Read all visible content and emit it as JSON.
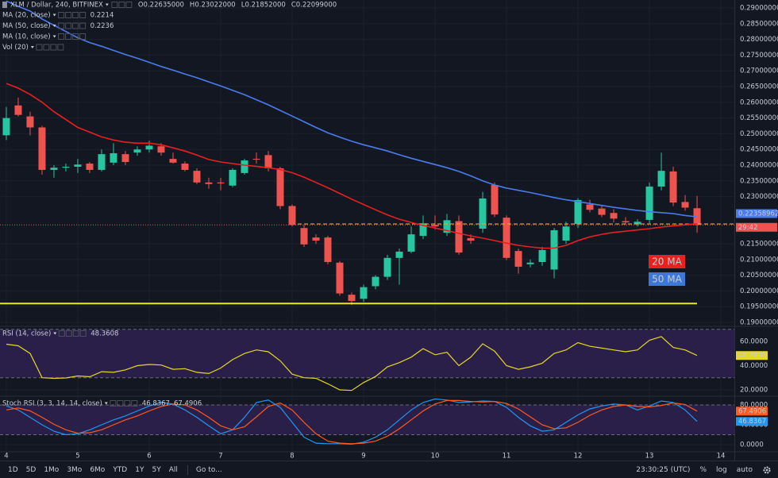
{
  "chart_data": [
    {
      "type": "candlestick",
      "title": "XLM / Dollar, 240, BITFINEX",
      "ohlc": [
        {
          "key": "O",
          "text": "0.22635000"
        },
        {
          "key": "H",
          "text": "0.23022000"
        },
        {
          "key": "L",
          "text": "0.21852000"
        },
        {
          "key": "C",
          "text": "0.22099000"
        }
      ],
      "open": [
        0.2495,
        0.259,
        0.2555,
        0.252,
        0.2385,
        0.2392,
        0.2395,
        0.2405,
        0.2385,
        0.2408,
        0.2435,
        0.244,
        0.245,
        0.246,
        0.242,
        0.2405,
        0.2382,
        0.2345,
        0.2345,
        0.2335,
        0.2375,
        0.242,
        0.2432,
        0.239,
        0.227,
        0.22,
        0.217,
        0.217,
        0.209,
        0.1988,
        0.1975,
        0.2015,
        0.2045,
        0.2105,
        0.2125,
        0.2175,
        0.221,
        0.2185,
        0.2222,
        0.2168,
        0.2198,
        0.2337,
        0.2233,
        0.2127,
        0.2085,
        0.2092,
        0.2068,
        0.216,
        0.2213,
        0.2275,
        0.2262,
        0.2248,
        0.2222,
        0.2212,
        0.2226,
        0.2332,
        0.238,
        0.2283,
        0.2263
      ],
      "high": [
        0.2585,
        0.2615,
        0.257,
        0.2525,
        0.24,
        0.2405,
        0.242,
        0.241,
        0.245,
        0.247,
        0.2445,
        0.246,
        0.2478,
        0.247,
        0.244,
        0.2412,
        0.239,
        0.236,
        0.236,
        0.239,
        0.242,
        0.244,
        0.2445,
        0.2395,
        0.2275,
        0.221,
        0.218,
        0.2175,
        0.2095,
        0.1995,
        0.202,
        0.205,
        0.2115,
        0.2135,
        0.2205,
        0.224,
        0.224,
        0.2245,
        0.224,
        0.218,
        0.2315,
        0.2345,
        0.224,
        0.2135,
        0.21,
        0.214,
        0.22,
        0.222,
        0.2295,
        0.229,
        0.227,
        0.226,
        0.2235,
        0.2228,
        0.2345,
        0.244,
        0.2395,
        0.2305,
        0.2302
      ],
      "low": [
        0.248,
        0.2555,
        0.2495,
        0.237,
        0.236,
        0.238,
        0.2375,
        0.2375,
        0.238,
        0.24,
        0.24,
        0.243,
        0.244,
        0.243,
        0.2405,
        0.238,
        0.234,
        0.2325,
        0.232,
        0.233,
        0.237,
        0.2405,
        0.238,
        0.226,
        0.2205,
        0.214,
        0.215,
        0.2085,
        0.1985,
        0.1955,
        0.1965,
        0.2005,
        0.2035,
        0.202,
        0.212,
        0.2165,
        0.2195,
        0.2175,
        0.2115,
        0.215,
        0.2185,
        0.2235,
        0.2098,
        0.2055,
        0.2075,
        0.208,
        0.204,
        0.215,
        0.22,
        0.225,
        0.2235,
        0.2218,
        0.221,
        0.2205,
        0.2215,
        0.232,
        0.227,
        0.2255,
        0.2185
      ],
      "close": [
        0.255,
        0.256,
        0.252,
        0.2385,
        0.2392,
        0.2395,
        0.2402,
        0.2385,
        0.2435,
        0.2438,
        0.241,
        0.245,
        0.2462,
        0.244,
        0.2408,
        0.2385,
        0.2345,
        0.234,
        0.2342,
        0.2385,
        0.2415,
        0.2418,
        0.239,
        0.227,
        0.221,
        0.2148,
        0.216,
        0.2092,
        0.1992,
        0.1968,
        0.2012,
        0.2045,
        0.2105,
        0.2125,
        0.218,
        0.2215,
        0.2205,
        0.2225,
        0.2122,
        0.216,
        0.2294,
        0.2243,
        0.2105,
        0.2077,
        0.209,
        0.213,
        0.2193,
        0.2205,
        0.2289,
        0.2258,
        0.2242,
        0.223,
        0.2218,
        0.222,
        0.2332,
        0.2382,
        0.2281,
        0.2265,
        0.22099
      ],
      "up_color": "#26c6a0",
      "down_color": "#ef5350",
      "series": [
        {
          "name": "MA (20, close)",
          "color": "#e8201f",
          "last": "0.2214",
          "values": [
            0.266,
            0.2645,
            0.2625,
            0.26,
            0.257,
            0.2545,
            0.252,
            0.2505,
            0.249,
            0.248,
            0.2473,
            0.247,
            0.247,
            0.2465,
            0.2455,
            0.2445,
            0.2432,
            0.2418,
            0.241,
            0.2405,
            0.24,
            0.2396,
            0.2392,
            0.2386,
            0.2376,
            0.2362,
            0.2345,
            0.2328,
            0.231,
            0.2292,
            0.2275,
            0.2258,
            0.2242,
            0.2228,
            0.2218,
            0.2208,
            0.22,
            0.2192,
            0.2183,
            0.2175,
            0.2168,
            0.216,
            0.2152,
            0.2145,
            0.214,
            0.2136,
            0.2136,
            0.2145,
            0.216,
            0.2172,
            0.218,
            0.2186,
            0.219,
            0.2194,
            0.2198,
            0.2203,
            0.2207,
            0.221,
            0.2214
          ]
        },
        {
          "name": "MA (50, close)",
          "color": "#4a7cf0",
          "last": "0.2236",
          "values": [
            0.2922,
            0.2905,
            0.289,
            0.2865,
            0.2845,
            0.2825,
            0.2805,
            0.279,
            0.2778,
            0.2765,
            0.2752,
            0.274,
            0.2727,
            0.2714,
            0.2702,
            0.269,
            0.2678,
            0.2665,
            0.2652,
            0.2638,
            0.2624,
            0.2608,
            0.2592,
            0.2574,
            0.2556,
            0.2538,
            0.252,
            0.2503,
            0.2489,
            0.2476,
            0.2465,
            0.2455,
            0.2445,
            0.2433,
            0.2422,
            0.2412,
            0.2402,
            0.2392,
            0.238,
            0.2366,
            0.235,
            0.2337,
            0.2327,
            0.232,
            0.2313,
            0.2305,
            0.2297,
            0.229,
            0.2284,
            0.2278,
            0.2272,
            0.2266,
            0.2261,
            0.2256,
            0.2252,
            0.2249,
            0.2246,
            0.224,
            0.2236
          ]
        }
      ],
      "other_indicators": [
        "MA (10, close)",
        "Vol (20)"
      ],
      "annotations": [
        {
          "text": "20 MA",
          "color": "#e8201f"
        },
        {
          "text": "50 MA",
          "color": "#3c78d8"
        }
      ],
      "price_labels": [
        {
          "text": "0.22358962",
          "color": "#4a7cf0"
        },
        {
          "text": "29:42",
          "color": "#ef5350"
        }
      ],
      "support": {
        "value": 0.196,
        "color": "#e8e81a"
      },
      "price_line": {
        "value": 0.2213,
        "color": "#f5a623"
      },
      "xlim": [
        -0.53,
        61.13
      ],
      "xticks": [
        {
          "value": 0,
          "label": "4"
        },
        {
          "value": 6,
          "label": "5"
        },
        {
          "value": 12,
          "label": "6"
        },
        {
          "value": 18,
          "label": "7"
        },
        {
          "value": 24,
          "label": "8"
        },
        {
          "value": 30,
          "label": "9"
        },
        {
          "value": 36,
          "label": "10"
        },
        {
          "value": 42,
          "label": "11"
        },
        {
          "value": 48,
          "label": "12"
        },
        {
          "value": 54,
          "label": "13"
        },
        {
          "value": 60,
          "label": "14"
        }
      ],
      "ylim": [
        0.18899,
        0.29253
      ],
      "yticks": [
        {
          "value": 0.29,
          "label": "0.29000000"
        },
        {
          "value": 0.285,
          "label": "0.28500000"
        },
        {
          "value": 0.28,
          "label": "0.28000000"
        },
        {
          "value": 0.275,
          "label": "0.27500000"
        },
        {
          "value": 0.27,
          "label": "0.27000000"
        },
        {
          "value": 0.265,
          "label": "0.26500000"
        },
        {
          "value": 0.26,
          "label": "0.26000000"
        },
        {
          "value": 0.255,
          "label": "0.25500000"
        },
        {
          "value": 0.25,
          "label": "0.25000000"
        },
        {
          "value": 0.245,
          "label": "0.24500000"
        },
        {
          "value": 0.24,
          "label": "0.24000000"
        },
        {
          "value": 0.235,
          "label": "0.23500000"
        },
        {
          "value": 0.23,
          "label": "0.23000000"
        },
        {
          "value": 0.215,
          "label": "0.21500000"
        },
        {
          "value": 0.21,
          "label": "0.21000000"
        },
        {
          "value": 0.205,
          "label": "0.20500000"
        },
        {
          "value": 0.2,
          "label": "0.20000000"
        },
        {
          "value": 0.195,
          "label": "0.19500000"
        },
        {
          "value": 0.19,
          "label": "0.19000000"
        }
      ],
      "grid": true
    },
    {
      "type": "line",
      "title": "RSI (14, close)",
      "band": [
        30,
        70
      ],
      "band_color": "#2a1f48",
      "series": [
        {
          "color": "#e6d629",
          "last": "48.3608",
          "values": [
            57.7,
            56.4,
            50,
            30,
            29.5,
            29.8,
            31.5,
            30.8,
            35,
            34.5,
            36.5,
            40,
            41,
            40.5,
            37,
            37.5,
            34.5,
            33.5,
            38,
            45,
            50,
            53,
            51.5,
            44,
            33,
            30,
            29.5,
            25,
            20,
            19.5,
            26,
            31,
            39,
            42.5,
            47,
            54,
            49,
            51,
            40,
            47,
            58,
            52,
            40,
            37,
            39,
            42,
            50,
            53,
            59,
            56,
            54.5,
            53,
            51.5,
            53,
            61,
            64,
            55,
            53,
            48.3608
          ]
        }
      ],
      "ylim": [
        15.4,
        71.8
      ],
      "yticks": [
        {
          "value": 60,
          "label": "60.0000"
        },
        {
          "value": 40,
          "label": "40.0000"
        },
        {
          "value": 20,
          "label": "20.0000"
        }
      ],
      "grid": true
    },
    {
      "type": "line",
      "title": "Stoch RSI (3, 3, 14, 14, close)",
      "band": [
        20,
        80
      ],
      "band_color": "#2a1f48",
      "series": [
        {
          "color": "#2196f3",
          "last": "46.8367",
          "values": [
            78,
            70,
            55,
            40,
            27,
            20,
            22,
            30,
            40,
            50,
            58,
            68,
            78,
            85,
            82,
            70,
            55,
            38,
            22,
            30,
            55,
            85,
            90,
            75,
            45,
            15,
            3,
            2,
            2,
            1,
            5,
            15,
            30,
            50,
            70,
            85,
            92,
            90,
            85,
            86,
            88,
            87,
            75,
            55,
            38,
            27,
            30,
            45,
            60,
            72,
            78,
            82,
            80,
            70,
            78,
            88,
            85,
            70,
            46.8367
          ]
        },
        {
          "color": "#ff5a1f",
          "last": "67.4906",
          "values": [
            70,
            74,
            68,
            55,
            41,
            30,
            23,
            24,
            30,
            40,
            50,
            58,
            68,
            77,
            82,
            80,
            70,
            55,
            38,
            30,
            36,
            56,
            77,
            84,
            70,
            45,
            22,
            7,
            3,
            2,
            3,
            7,
            17,
            32,
            50,
            68,
            82,
            89,
            89,
            87,
            86,
            87,
            83,
            72,
            56,
            40,
            32,
            34,
            45,
            59,
            70,
            77,
            80,
            77,
            76,
            79,
            84,
            81,
            67.4906
          ]
        }
      ],
      "ylim": [
        -12.8,
        96
      ],
      "yticks": [
        {
          "value": 80,
          "label": "80.0000"
        },
        {
          "value": 40,
          "label": "40.0000"
        },
        {
          "value": 0,
          "label": "0.0000"
        }
      ],
      "grid": true
    }
  ],
  "toolbar": {
    "ranges": [
      "1D",
      "5D",
      "1Mo",
      "3Mo",
      "6Mo",
      "YTD",
      "1Y",
      "5Y",
      "All"
    ],
    "goto": "Go to...",
    "clock": "23:30:25 (UTC)",
    "options": [
      "%",
      "log",
      "auto"
    ]
  }
}
